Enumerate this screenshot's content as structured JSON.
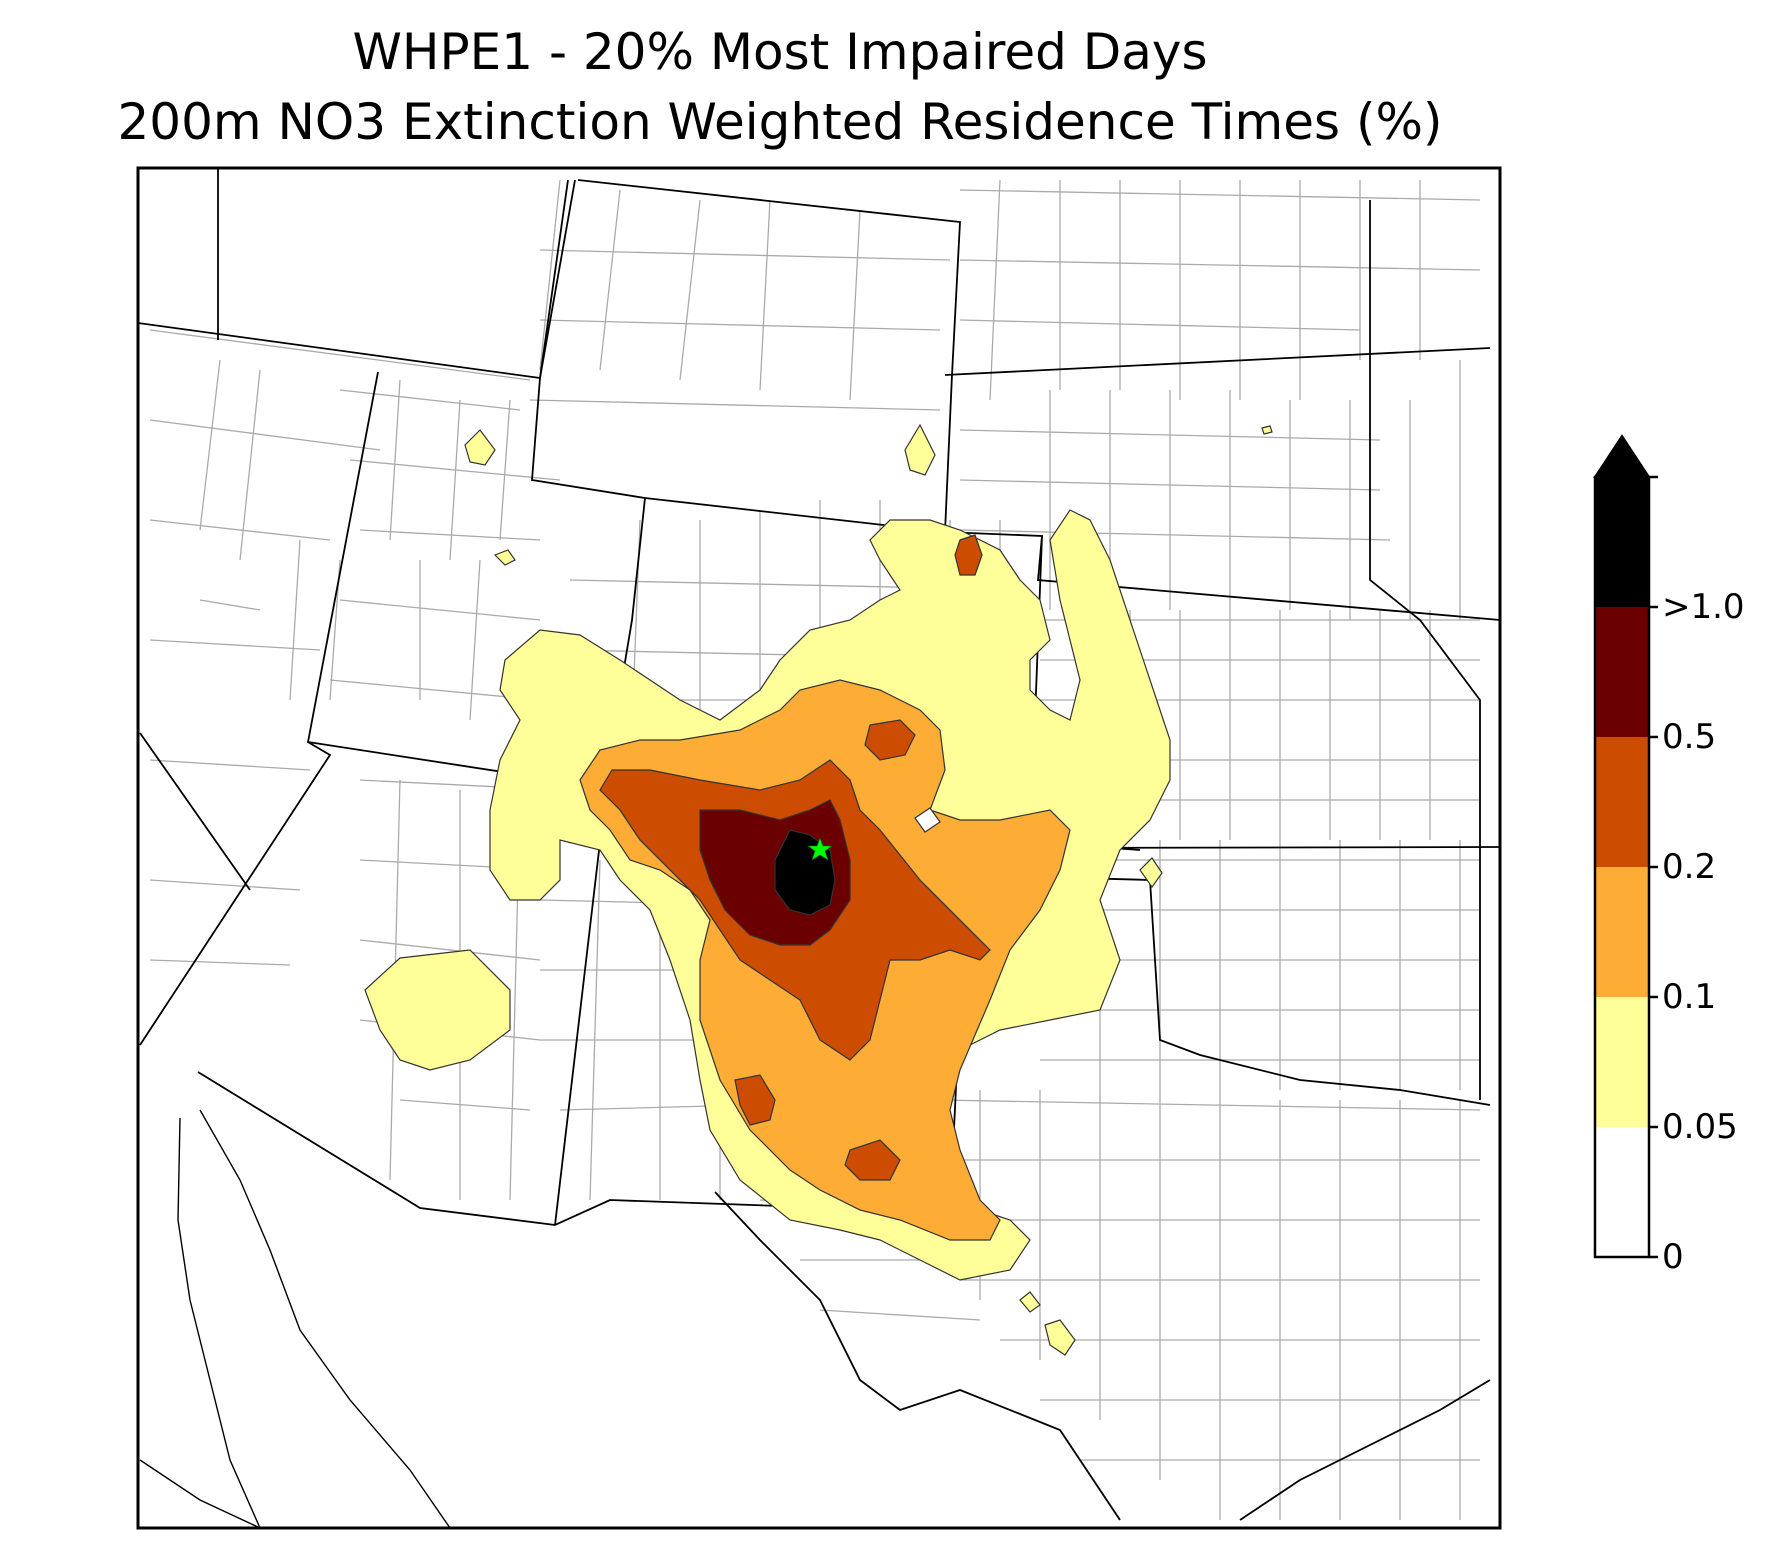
{
  "title": {
    "line1": "WHPE1 - 20% Most Impaired Days",
    "line2": "200m NO3 Extinction Weighted Residence Times (%)"
  },
  "colorbar": {
    "extend": "max",
    "levels": [
      {
        "label": "0",
        "color": "#ffffff"
      },
      {
        "label": "0.05",
        "color": "#ffff99"
      },
      {
        "label": "0.1",
        "color": "#fdad35"
      },
      {
        "label": "0.2",
        "color": "#cc4c02"
      },
      {
        "label": "0.5",
        "color": "#6b0000"
      },
      {
        "label": ">1.0",
        "color": "#000000"
      }
    ],
    "top_color": "#000000"
  },
  "map": {
    "region": "Southwestern United States",
    "site_marker": {
      "symbol": "star",
      "color": "#00ff00"
    },
    "state_border_color": "#000000",
    "county_border_color": "#aaaaaa"
  }
}
